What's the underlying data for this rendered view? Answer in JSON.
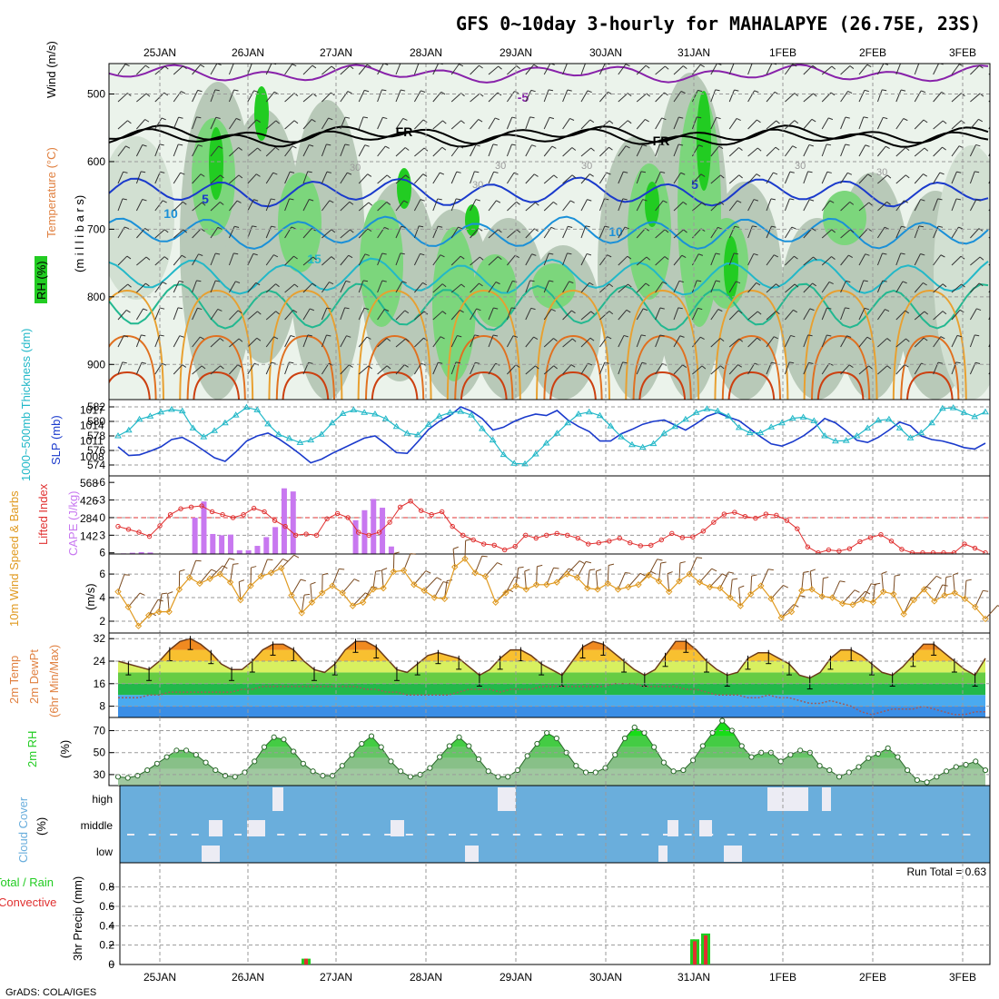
{
  "title": "GFS 0~10day 3-hourly for MAHALAPYE (26.75E, 23S)",
  "credit": "GrADS: COLA/IGES",
  "run_total_label": "Run Total = 0.63",
  "dates": [
    "25JAN",
    "26JAN",
    "27JAN",
    "28JAN",
    "29JAN",
    "30JAN",
    "31JAN",
    "1FEB",
    "2FEB",
    "3FEB"
  ],
  "colors": {
    "rh_dark": "#b8c9b8",
    "rh_mid": "#d2e0d2",
    "rh_light": "#ebf3eb",
    "rh_wet": "#7cd67c",
    "rh_very_wet": "#22cc22",
    "thickness": "#1a3acc",
    "slp": "#22b8c8",
    "lifted": "#e03030",
    "cape": "#c878f0",
    "wind10": "#e09a20",
    "cloud": "#6aaedc",
    "rain": "#22cc22",
    "convective": "#e03030",
    "rh2m": "#22cc22"
  },
  "panels": {
    "upper": {
      "label_rh": "RH (%)",
      "label_temp": "Temperature (°C)",
      "label_wind": "Wind (m/s)",
      "label_pressure": "(m i l l i b a r s)",
      "yticks": [
        "500",
        "600",
        "700",
        "800",
        "900"
      ],
      "isotherm_labels": [
        "-5",
        "FR",
        "FR",
        "5",
        "5",
        "10",
        "10",
        "15"
      ],
      "rh_labels": [
        "30",
        "30",
        "30",
        "30",
        "30",
        "30"
      ]
    },
    "thickness_slp": {
      "label_thickness": "1000~500mb Thickness (dm)",
      "label_slp": "SLP (mb)",
      "yticks_left": [
        "582",
        "580",
        "578",
        "576",
        "574"
      ],
      "yticks_right": [
        "1017",
        "1014",
        "1011",
        "1008"
      ]
    },
    "lifted_cape": {
      "label_lifted": "Lifted Index",
      "label_cape": "CAPE (J/kg)",
      "yticks_left": [
        "-6",
        "-3",
        "0",
        "3",
        "6"
      ],
      "yticks_right": [
        "568",
        "426",
        "284",
        "142"
      ]
    },
    "wind10m": {
      "label": "10m Wind Speed & Barbs",
      "label_units": "(m/s)",
      "yticks": [
        "6",
        "4",
        "2"
      ]
    },
    "temp2m": {
      "label_temp": "2m Temp",
      "label_dewpt": "2m DewPt",
      "label_minmax": "(6hr Min/Max)",
      "yticks": [
        "32",
        "24",
        "16",
        "8"
      ]
    },
    "rh2m": {
      "label": "2m RH",
      "label_units": "(%)",
      "yticks": [
        "70",
        "50",
        "30"
      ]
    },
    "cloud": {
      "label": "Cloud Cover",
      "label_units": "(%)",
      "levels": [
        "high",
        "middle",
        "low"
      ]
    },
    "precip": {
      "label_left": "Total / Rain",
      "label_left2": "Convective",
      "label_y": "3hr Precip (mm)",
      "yticks": [
        "0.8",
        "0.6",
        "0.4",
        "0.2",
        "0"
      ]
    }
  },
  "chart_data": [
    {
      "type": "line",
      "title": "1000~500mb Thickness (dm) & SLP (mb)",
      "series": [
        {
          "name": "1000~500mb Thickness (dm)",
          "values": [
            576.5,
            575.3,
            575.4,
            575.9,
            576.5,
            577.5,
            577.8,
            577.0,
            576.0,
            575.0,
            574.5,
            575.8,
            577.3,
            578.0,
            578.4,
            577.6,
            576.6,
            575.5,
            574.3,
            574.8,
            575.6,
            576.3,
            577.0,
            577.7,
            578.0,
            576.9,
            575.7,
            575.6,
            577.2,
            578.9,
            580.0,
            580.8,
            582.0,
            581.4,
            580.4,
            578.8,
            579.2,
            580.0,
            580.6,
            581.0,
            580.8,
            581.5,
            580.2,
            579.3,
            578.6,
            577.3,
            577.3,
            578.3,
            578.9,
            579.6,
            580.0,
            580.2,
            579.5,
            578.8,
            579.7,
            580.7,
            581.2,
            580.6,
            580.1,
            579.0,
            577.9,
            576.9,
            576.6,
            577.2,
            578.0,
            579.1,
            580.4,
            579.8,
            578.7,
            577.4,
            577.1,
            577.8,
            578.8,
            579.9,
            579.4,
            578.0,
            577.5,
            577.3,
            576.9,
            576.4,
            576.2,
            577.0
          ]
        },
        {
          "name": "SLP (mb)",
          "values": [
            1012.0,
            1013.1,
            1015.2,
            1015.8,
            1016.6,
            1017.1,
            1016.8,
            1013.5,
            1011.8,
            1013.0,
            1014.5,
            1016.0,
            1017.5,
            1017.0,
            1014.3,
            1012.3,
            1011.5,
            1010.7,
            1011.2,
            1012.3,
            1014.5,
            1016.3,
            1017.0,
            1016.5,
            1016.2,
            1015.3,
            1013.8,
            1012.5,
            1012.2,
            1014.2,
            1015.8,
            1016.5,
            1016.7,
            1016.0,
            1013.4,
            1011.2,
            1008.4,
            1006.7,
            1006.6,
            1008.5,
            1010.6,
            1012.5,
            1014.5,
            1016.2,
            1016.6,
            1015.9,
            1013.9,
            1011.8,
            1010.3,
            1009.8,
            1010.5,
            1012.5,
            1013.8,
            1015.2,
            1016.5,
            1017.2,
            1016.8,
            1015.8,
            1013.6,
            1012.6,
            1012.6,
            1013.7,
            1014.5,
            1015.4,
            1015.6,
            1014.9,
            1012.0,
            1011.0,
            1011.1,
            1012.0,
            1013.5,
            1015.0,
            1015.2,
            1013.5,
            1011.6,
            1012.6,
            1014.5,
            1017.3,
            1017.4,
            1016.5,
            1015.7,
            1016.6
          ]
        }
      ]
    },
    {
      "type": "bar",
      "title": "Lifted Index & CAPE (J/kg)",
      "series": [
        {
          "name": "CAPE (J/kg)",
          "values": [
            5,
            10,
            15,
            12,
            0,
            0,
            0,
            0,
            290,
            420,
            160,
            150,
            155,
            30,
            30,
            65,
            135,
            215,
            525,
            500,
            0,
            0,
            0,
            0,
            0,
            0,
            270,
            350,
            440,
            370,
            60,
            0,
            0,
            0,
            0,
            0,
            0,
            0,
            0,
            0,
            0,
            0,
            0,
            0,
            0,
            0,
            0,
            0,
            0,
            0,
            0,
            0,
            0,
            0,
            0,
            0,
            0,
            0,
            0,
            0,
            0,
            0,
            0,
            0,
            0,
            0,
            0,
            0,
            0,
            0,
            0,
            0,
            0,
            0,
            0,
            0,
            0,
            0,
            0,
            0,
            0,
            0,
            0,
            0,
            0,
            0,
            0,
            0,
            0,
            0,
            0,
            0
          ]
        },
        {
          "name": "Lifted Index",
          "values": [
            1.5,
            2.0,
            2.5,
            3.2,
            1.4,
            -0.5,
            -1.5,
            -1.8,
            -2.0,
            -1.0,
            -0.5,
            0.0,
            -0.5,
            -1.6,
            -1.0,
            0.5,
            1.5,
            3.0,
            2.8,
            3.0,
            0.2,
            -0.7,
            0.0,
            2.5,
            3.0,
            2.5,
            0.8,
            -1.8,
            -2.8,
            -1.2,
            -0.5,
            -1.0,
            1.5,
            3.0,
            3.8,
            4.5,
            4.7,
            5.5,
            4.9,
            3.0,
            3.5,
            3.0,
            2.7,
            3.0,
            3.5,
            4.5,
            4.3,
            4.0,
            3.5,
            4.3,
            4.8,
            4.7,
            3.8,
            2.7,
            3.4,
            3.3,
            2.3,
            0.8,
            -0.6,
            -0.9,
            -0.2,
            0.1,
            -0.6,
            -0.4,
            0.5,
            1.9,
            5.0,
            6.0,
            5.5,
            5.7,
            5.3,
            4.1,
            3.4,
            2.9,
            4.0,
            5.4,
            6.0,
            6.0,
            6.0,
            6.0,
            6.0,
            4.5,
            5.2,
            6.0
          ]
        }
      ]
    },
    {
      "type": "line",
      "title": "10m Wind Speed & Barbs (m/s)",
      "ylim": [
        1,
        7.5
      ],
      "series": [
        {
          "name": "10m Wind Speed",
          "values": [
            4.5,
            3.2,
            1.6,
            2.5,
            2.8,
            2.8,
            4.7,
            5.7,
            5.2,
            5.6,
            6.0,
            5.3,
            3.8,
            5.0,
            5.8,
            6.1,
            6.5,
            4.2,
            2.7,
            3.6,
            4.4,
            5.0,
            4.4,
            3.3,
            3.6,
            4.7,
            4.8,
            6.2,
            6.3,
            5.1,
            4.6,
            4.0,
            3.9,
            6.6,
            7.3,
            6.1,
            5.8,
            3.6,
            4.4,
            5.0,
            4.7,
            5.1,
            5.1,
            5.3,
            6.0,
            5.7,
            4.8,
            4.7,
            5.2,
            4.7,
            4.9,
            5.1,
            5.9,
            5.4,
            4.5,
            5.4,
            6.0,
            5.3,
            4.9,
            4.8,
            4.0,
            3.3,
            4.3,
            5.0,
            3.9,
            2.3,
            2.8,
            4.6,
            4.7,
            4.1,
            4.0,
            3.5,
            3.4,
            3.8,
            3.6,
            4.5,
            4.3,
            2.6,
            3.8,
            4.7,
            3.7,
            4.2,
            4.4,
            3.9,
            3.2,
            2.2
          ]
        }
      ]
    },
    {
      "type": "area",
      "title": "2m Temp & 2m DewPt (°C)",
      "ylim": [
        4,
        34
      ],
      "series": [
        {
          "name": "2m Temp",
          "values": [
            24,
            23,
            22,
            21,
            24,
            28,
            31,
            32,
            30,
            27,
            23,
            21,
            21,
            24,
            28,
            30,
            30,
            28,
            24,
            21,
            20,
            23,
            28,
            31,
            31,
            29,
            25,
            21,
            20,
            23,
            26,
            27,
            26,
            25,
            22,
            19,
            21,
            25,
            28,
            28,
            26,
            23,
            21,
            19,
            24,
            29,
            31,
            30,
            27,
            24,
            21,
            19,
            21,
            26,
            31,
            31,
            28,
            24,
            21,
            19,
            20,
            25,
            27,
            27,
            25,
            23,
            19,
            18,
            20,
            25,
            28,
            28,
            26,
            23,
            20,
            19,
            22,
            26,
            30,
            30,
            27,
            24,
            21,
            19,
            25
          ]
        },
        {
          "name": "2m DewPt",
          "values": [
            11,
            11,
            11,
            12,
            12,
            13,
            13,
            13,
            13,
            13,
            13,
            13,
            14,
            14,
            15,
            15,
            15,
            15,
            15,
            15,
            15,
            15,
            15,
            15,
            14,
            14,
            13,
            13,
            12,
            12,
            12,
            12,
            12,
            13,
            14,
            14,
            14,
            13,
            14,
            14,
            14,
            15,
            15,
            15,
            15,
            15,
            15,
            15,
            16,
            16,
            16,
            15,
            15,
            15,
            15,
            14,
            14,
            13,
            12,
            12,
            12,
            11,
            11,
            12,
            11,
            11,
            10,
            9,
            9,
            10,
            9,
            8,
            6,
            5,
            6,
            7,
            7,
            7,
            8,
            7,
            6,
            5,
            5,
            6,
            6
          ]
        }
      ]
    },
    {
      "type": "area",
      "title": "2m RH (%)",
      "ylim": [
        20,
        80
      ],
      "series": [
        {
          "name": "2m RH",
          "values": [
            28,
            27,
            29,
            34,
            40,
            46,
            52,
            52,
            48,
            41,
            34,
            29,
            28,
            32,
            42,
            55,
            64,
            62,
            51,
            40,
            33,
            29,
            29,
            38,
            48,
            58,
            65,
            55,
            42,
            33,
            28,
            30,
            36,
            46,
            56,
            64,
            56,
            44,
            33,
            28,
            28,
            34,
            47,
            58,
            68,
            63,
            50,
            38,
            32,
            32,
            36,
            48,
            63,
            73,
            68,
            55,
            41,
            33,
            34,
            43,
            56,
            68,
            79,
            70,
            56,
            46,
            50,
            50,
            42,
            48,
            52,
            50,
            38,
            34,
            28,
            32,
            37,
            45,
            49,
            54,
            46,
            34,
            25,
            23,
            28,
            33,
            37,
            39,
            42,
            34
          ]
        }
      ]
    },
    {
      "type": "bar",
      "title": "3hr Precip (mm)",
      "ylim": [
        0,
        1.0
      ],
      "categories": [
        "26JAN+15h",
        "31JAN+0h",
        "31JAN+3h"
      ],
      "series": [
        {
          "name": "Total / Rain",
          "values": [
            0.06,
            0.26,
            0.32
          ]
        },
        {
          "name": "Convective",
          "values": [
            0.06,
            0.24,
            0.3
          ]
        }
      ]
    }
  ]
}
